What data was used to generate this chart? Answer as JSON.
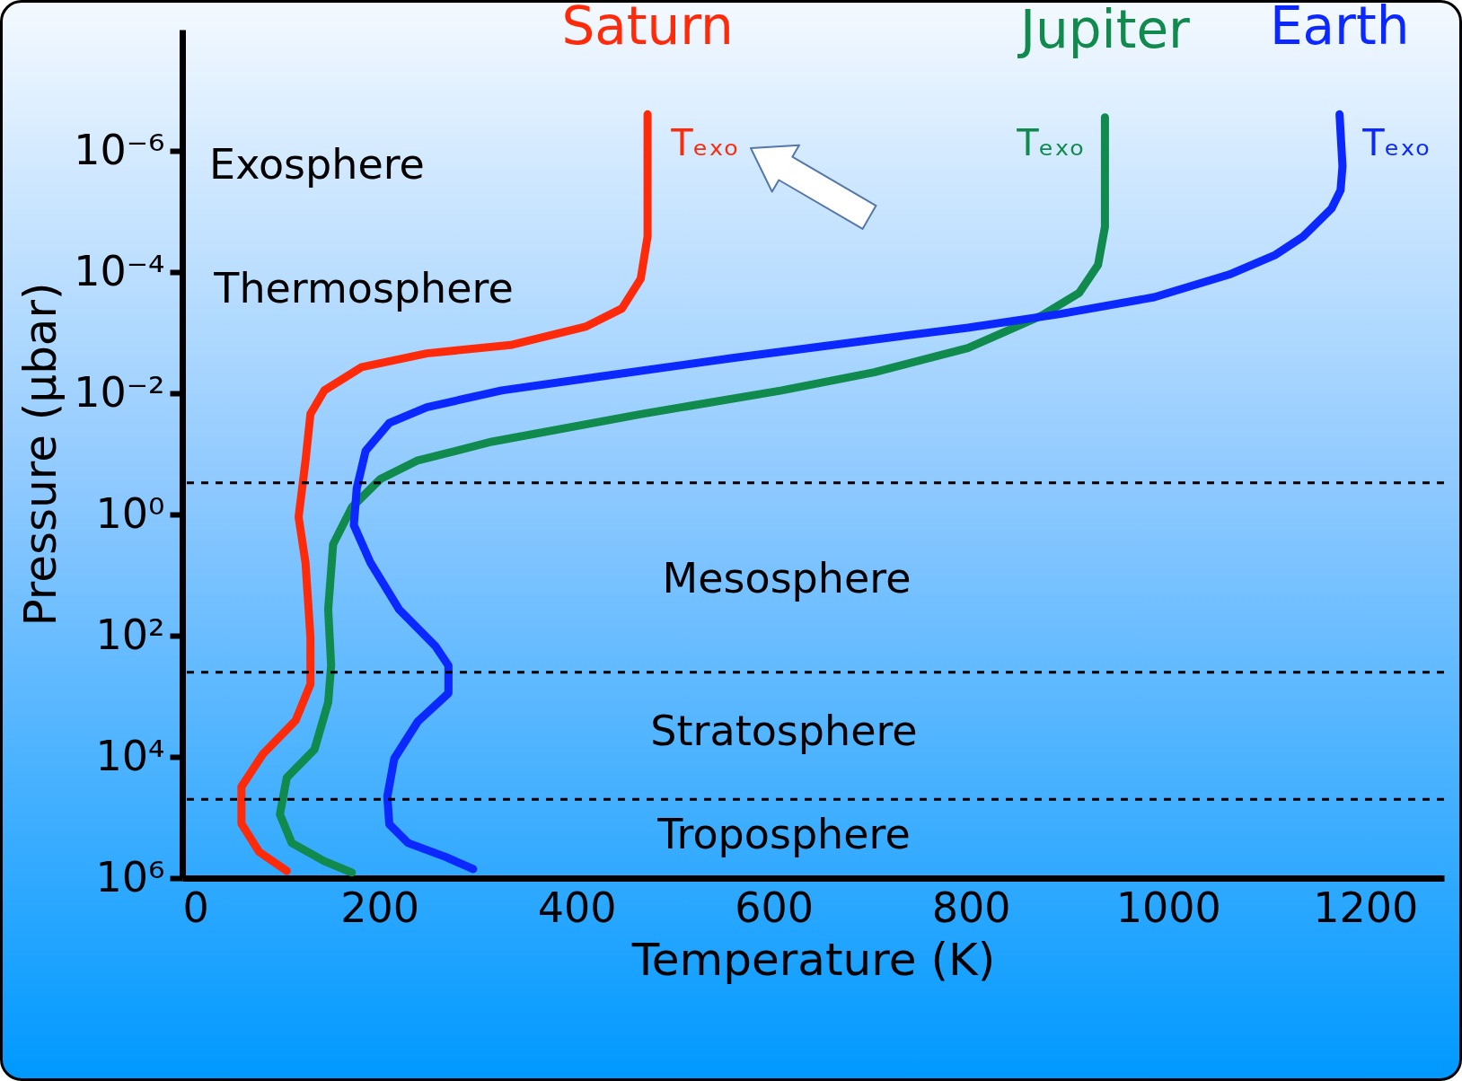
{
  "chart_data": {
    "type": "line",
    "xlabel": "Temperature (K)",
    "ylabel": "Pressure (µbar)",
    "log": "y",
    "legend": false,
    "grid": false,
    "xlim": [
      0,
      1280
    ],
    "ylim": [
      1000000.0,
      1e-08
    ],
    "xticks": [
      0,
      200,
      400,
      600,
      800,
      1000,
      1200
    ],
    "yticks": [
      {
        "value": 1e-06,
        "label": "10⁻⁶"
      },
      {
        "value": 0.0001,
        "label": "10⁻⁴"
      },
      {
        "value": 0.01,
        "label": "10⁻²"
      },
      {
        "value": 1,
        "label": "10⁰"
      },
      {
        "value": 100,
        "label": "10²"
      },
      {
        "value": 10000,
        "label": "10⁴"
      },
      {
        "value": 1000000,
        "label": "10⁶"
      }
    ],
    "series": [
      {
        "name": "Saturn",
        "color": "#ff2a0a",
        "x": [
          472,
          472,
          465,
          446,
          409,
          333,
          248,
          182,
          144,
          130,
          125,
          118,
          125,
          130,
          130,
          115,
          82,
          60,
          60,
          78,
          106
        ],
        "values": [
          2.5e-07,
          2.6e-05,
          0.00013,
          0.0004,
          0.0008,
          0.0016,
          0.0022,
          0.0037,
          0.009,
          0.022,
          0.13,
          1.1,
          6.3,
          107,
          630,
          2500,
          8900,
          31000,
          126000,
          370000,
          760000
        ]
      },
      {
        "name": "Jupiter",
        "color": "#118a4e",
        "x": [
          936,
          936,
          929,
          910,
          872,
          797,
          702,
          608,
          466,
          314,
          238,
          201,
          172,
          153,
          148,
          151,
          148,
          134,
          106,
          99,
          111,
          144,
          172
        ],
        "values": [
          2.8e-07,
          1.8e-05,
          7.6e-05,
          0.00022,
          0.00052,
          0.0018,
          0.0045,
          0.009,
          0.022,
          0.063,
          0.13,
          0.26,
          0.76,
          3.1,
          37,
          310,
          1260,
          7600,
          22000,
          89000,
          263000,
          525000,
          810000
        ]
      },
      {
        "name": "Earth",
        "color": "#0a28ff",
        "x": [
          1174,
          1177,
          1175,
          1166,
          1137,
          1109,
          1062,
          986,
          891,
          797,
          702,
          560,
          428,
          324,
          248,
          210,
          186,
          177,
          174,
          191,
          220,
          257,
          270,
          270,
          239,
          215,
          208,
          210,
          229,
          267,
          295
        ],
        "values": [
          2.5e-07,
          1.8e-06,
          4.5e-06,
          8.9e-06,
          2.6e-05,
          5.2e-05,
          0.00011,
          0.00026,
          0.00049,
          0.00083,
          0.0013,
          0.0026,
          0.0052,
          0.009,
          0.017,
          0.031,
          0.089,
          0.37,
          1.5,
          6.3,
          37,
          150,
          310,
          890,
          2600,
          10700,
          45000,
          129000,
          263000,
          447000,
          708000
        ]
      }
    ],
    "ref_lines": [
      {
        "axis": "y",
        "value": 0.3,
        "line_style": "dashed"
      },
      {
        "axis": "y",
        "value": 400,
        "line_style": "dashed"
      },
      {
        "axis": "y",
        "value": 50000,
        "line_style": "dashed"
      }
    ],
    "annotations": [
      "Exosphere",
      "Thermosphere",
      "Mesosphere",
      "Stratosphere",
      "Troposphere",
      "Tₑₓₒ",
      "Tₑₓₒ",
      "Tₑₓₒ"
    ]
  }
}
